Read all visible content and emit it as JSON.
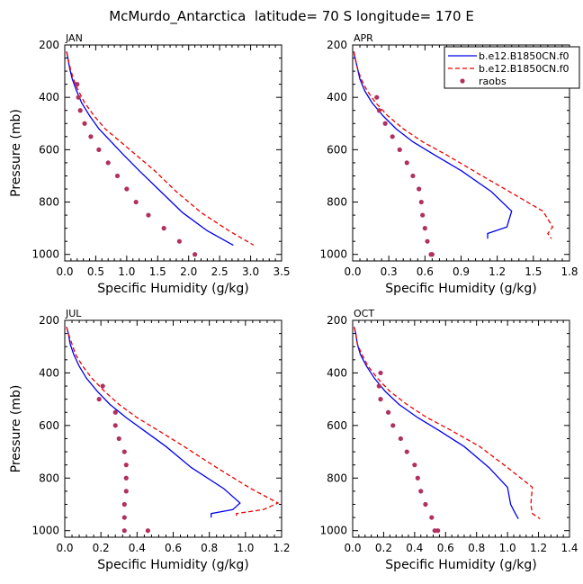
{
  "title": "McMurdo_Antarctica  latitude= 70 S longitude= 170 E",
  "legend": {
    "entries": [
      {
        "label": "b.e12.B1850CN.f0",
        "color": "#0000ee",
        "style": "solid"
      },
      {
        "label": "b.e12.B1850CN.f0",
        "color": "#ee0000",
        "style": "dashed"
      },
      {
        "label": "raobs",
        "color": "#b03060",
        "style": "dot"
      }
    ]
  },
  "chart_data": [
    {
      "type": "line",
      "panel": "JAN",
      "xlabel": "Specific Humidity (g/kg)",
      "ylabel": "Pressure (mb)",
      "xlim": [
        0,
        3.5
      ],
      "ylim": [
        1025,
        200
      ],
      "x_ticks": [
        "0.0",
        "0.5",
        "1.0",
        "1.5",
        "2.0",
        "2.5",
        "3.0",
        "3.5"
      ],
      "y_ticks": [
        "200",
        "400",
        "600",
        "800",
        "1000"
      ],
      "series": [
        {
          "name": "b.e12.B1850CN.f0",
          "color": "#0000ee",
          "style": "solid",
          "x": [
            0.03,
            0.05,
            0.08,
            0.12,
            0.19,
            0.27,
            0.4,
            0.55,
            0.75,
            0.95,
            1.2,
            1.55,
            1.9,
            2.3,
            2.72
          ],
          "y": [
            225,
            250,
            290,
            330,
            375,
            420,
            470,
            520,
            570,
            620,
            680,
            760,
            840,
            910,
            965
          ]
        },
        {
          "name": "b.e12.B1850CN.f0",
          "color": "#ee0000",
          "style": "dashed",
          "x": [
            0.03,
            0.05,
            0.09,
            0.14,
            0.22,
            0.32,
            0.47,
            0.65,
            0.9,
            1.15,
            1.45,
            1.8,
            2.2,
            2.65,
            3.05
          ],
          "y": [
            225,
            250,
            290,
            330,
            375,
            420,
            470,
            520,
            570,
            620,
            680,
            760,
            840,
            910,
            965
          ]
        },
        {
          "name": "raobs",
          "color": "#b03060",
          "style": "dot",
          "x": [
            0.2,
            0.22,
            0.25,
            0.32,
            0.42,
            0.55,
            0.7,
            0.85,
            1.0,
            1.15,
            1.35,
            1.6,
            1.85,
            2.1
          ],
          "y": [
            350,
            400,
            450,
            500,
            550,
            600,
            650,
            700,
            750,
            800,
            850,
            900,
            950,
            1000
          ]
        }
      ]
    },
    {
      "type": "line",
      "panel": "APR",
      "xlabel": "Specific Humidity (g/kg)",
      "ylabel": "",
      "xlim": [
        0,
        1.8
      ],
      "ylim": [
        1025,
        200
      ],
      "x_ticks": [
        "0.0",
        "0.3",
        "0.6",
        "0.9",
        "1.2",
        "1.5",
        "1.8"
      ],
      "y_ticks": [
        "200",
        "400",
        "600",
        "800",
        "1000"
      ],
      "series": [
        {
          "name": "b.e12.B1850CN.f0",
          "color": "#0000ee",
          "style": "solid",
          "x": [
            0.01,
            0.02,
            0.04,
            0.06,
            0.1,
            0.16,
            0.25,
            0.36,
            0.5,
            0.68,
            0.9,
            1.15,
            1.32,
            1.28,
            1.12,
            1.12
          ],
          "y": [
            225,
            250,
            290,
            330,
            375,
            420,
            470,
            520,
            570,
            620,
            680,
            760,
            835,
            895,
            920,
            940
          ]
        },
        {
          "name": "b.e12.B1850CN.f0",
          "color": "#ee0000",
          "style": "dashed",
          "x": [
            0.01,
            0.02,
            0.04,
            0.07,
            0.12,
            0.19,
            0.29,
            0.42,
            0.58,
            0.78,
            1.0,
            1.3,
            1.58,
            1.66,
            1.62,
            1.65
          ],
          "y": [
            225,
            250,
            290,
            330,
            375,
            420,
            470,
            520,
            570,
            620,
            680,
            760,
            835,
            895,
            920,
            940
          ]
        },
        {
          "name": "raobs",
          "color": "#b03060",
          "style": "dot",
          "x": [
            0.2,
            0.22,
            0.27,
            0.33,
            0.39,
            0.45,
            0.5,
            0.55,
            0.57,
            0.58,
            0.6,
            0.62,
            0.65,
            0.66
          ],
          "y": [
            400,
            450,
            500,
            550,
            600,
            650,
            700,
            750,
            800,
            850,
            900,
            950,
            1000,
            1000
          ]
        }
      ]
    },
    {
      "type": "line",
      "panel": "JUL",
      "xlabel": "Specific Humidity (g/kg)",
      "ylabel": "Pressure (mb)",
      "xlim": [
        0,
        1.2
      ],
      "ylim": [
        1025,
        200
      ],
      "x_ticks": [
        "0.0",
        "0.2",
        "0.4",
        "0.6",
        "0.8",
        "1.0",
        "1.2"
      ],
      "y_ticks": [
        "200",
        "400",
        "600",
        "800",
        "1000"
      ],
      "series": [
        {
          "name": "b.e12.B1850CN.f0",
          "color": "#0000ee",
          "style": "solid",
          "x": [
            0.01,
            0.02,
            0.03,
            0.05,
            0.08,
            0.12,
            0.18,
            0.25,
            0.34,
            0.44,
            0.56,
            0.7,
            0.88,
            0.97,
            0.93,
            0.81,
            0.81
          ],
          "y": [
            225,
            250,
            290,
            330,
            375,
            420,
            470,
            520,
            570,
            620,
            680,
            760,
            840,
            895,
            920,
            935,
            950
          ]
        },
        {
          "name": "b.e12.B1850CN.f0",
          "color": "#ee0000",
          "style": "dashed",
          "x": [
            0.01,
            0.02,
            0.04,
            0.06,
            0.1,
            0.15,
            0.22,
            0.3,
            0.4,
            0.52,
            0.66,
            0.84,
            1.03,
            1.18,
            1.1,
            0.95,
            0.95
          ],
          "y": [
            225,
            250,
            290,
            330,
            375,
            420,
            470,
            520,
            570,
            620,
            680,
            760,
            840,
            895,
            920,
            935,
            950
          ]
        },
        {
          "name": "raobs",
          "color": "#b03060",
          "style": "dot",
          "x": [
            0.21,
            0.19,
            0.28,
            0.28,
            0.3,
            0.33,
            0.34,
            0.34,
            0.34,
            0.33,
            0.33,
            0.33,
            0.46
          ],
          "y": [
            450,
            500,
            550,
            600,
            650,
            700,
            750,
            800,
            850,
            900,
            950,
            1000,
            1000
          ]
        }
      ]
    },
    {
      "type": "line",
      "panel": "OCT",
      "xlabel": "Specific Humidity (g/kg)",
      "ylabel": "",
      "xlim": [
        0,
        1.4
      ],
      "ylim": [
        1025,
        200
      ],
      "x_ticks": [
        "0.0",
        "0.2",
        "0.4",
        "0.6",
        "0.8",
        "1.0",
        "1.2",
        "1.4"
      ],
      "y_ticks": [
        "200",
        "400",
        "600",
        "800",
        "1000"
      ],
      "series": [
        {
          "name": "b.e12.B1850CN.f0",
          "color": "#0000ee",
          "style": "solid",
          "x": [
            0.01,
            0.02,
            0.03,
            0.05,
            0.09,
            0.14,
            0.21,
            0.3,
            0.42,
            0.56,
            0.72,
            0.88,
            1.0,
            1.02,
            1.05,
            1.07
          ],
          "y": [
            225,
            250,
            290,
            330,
            375,
            420,
            470,
            520,
            570,
            620,
            680,
            760,
            835,
            900,
            935,
            955
          ]
        },
        {
          "name": "b.e12.B1850CN.f0",
          "color": "#ee0000",
          "style": "dashed",
          "x": [
            0.01,
            0.02,
            0.03,
            0.06,
            0.1,
            0.16,
            0.24,
            0.35,
            0.48,
            0.64,
            0.82,
            1.0,
            1.16,
            1.15,
            1.16,
            1.21
          ],
          "y": [
            225,
            250,
            290,
            330,
            375,
            420,
            470,
            520,
            570,
            620,
            680,
            760,
            835,
            900,
            935,
            955
          ]
        },
        {
          "name": "raobs",
          "color": "#b03060",
          "style": "dot",
          "x": [
            0.18,
            0.17,
            0.18,
            0.23,
            0.26,
            0.31,
            0.35,
            0.4,
            0.42,
            0.44,
            0.47,
            0.51,
            0.55,
            0.53
          ],
          "y": [
            400,
            450,
            500,
            550,
            600,
            650,
            700,
            750,
            800,
            850,
            900,
            950,
            1000,
            1000
          ]
        }
      ]
    }
  ]
}
